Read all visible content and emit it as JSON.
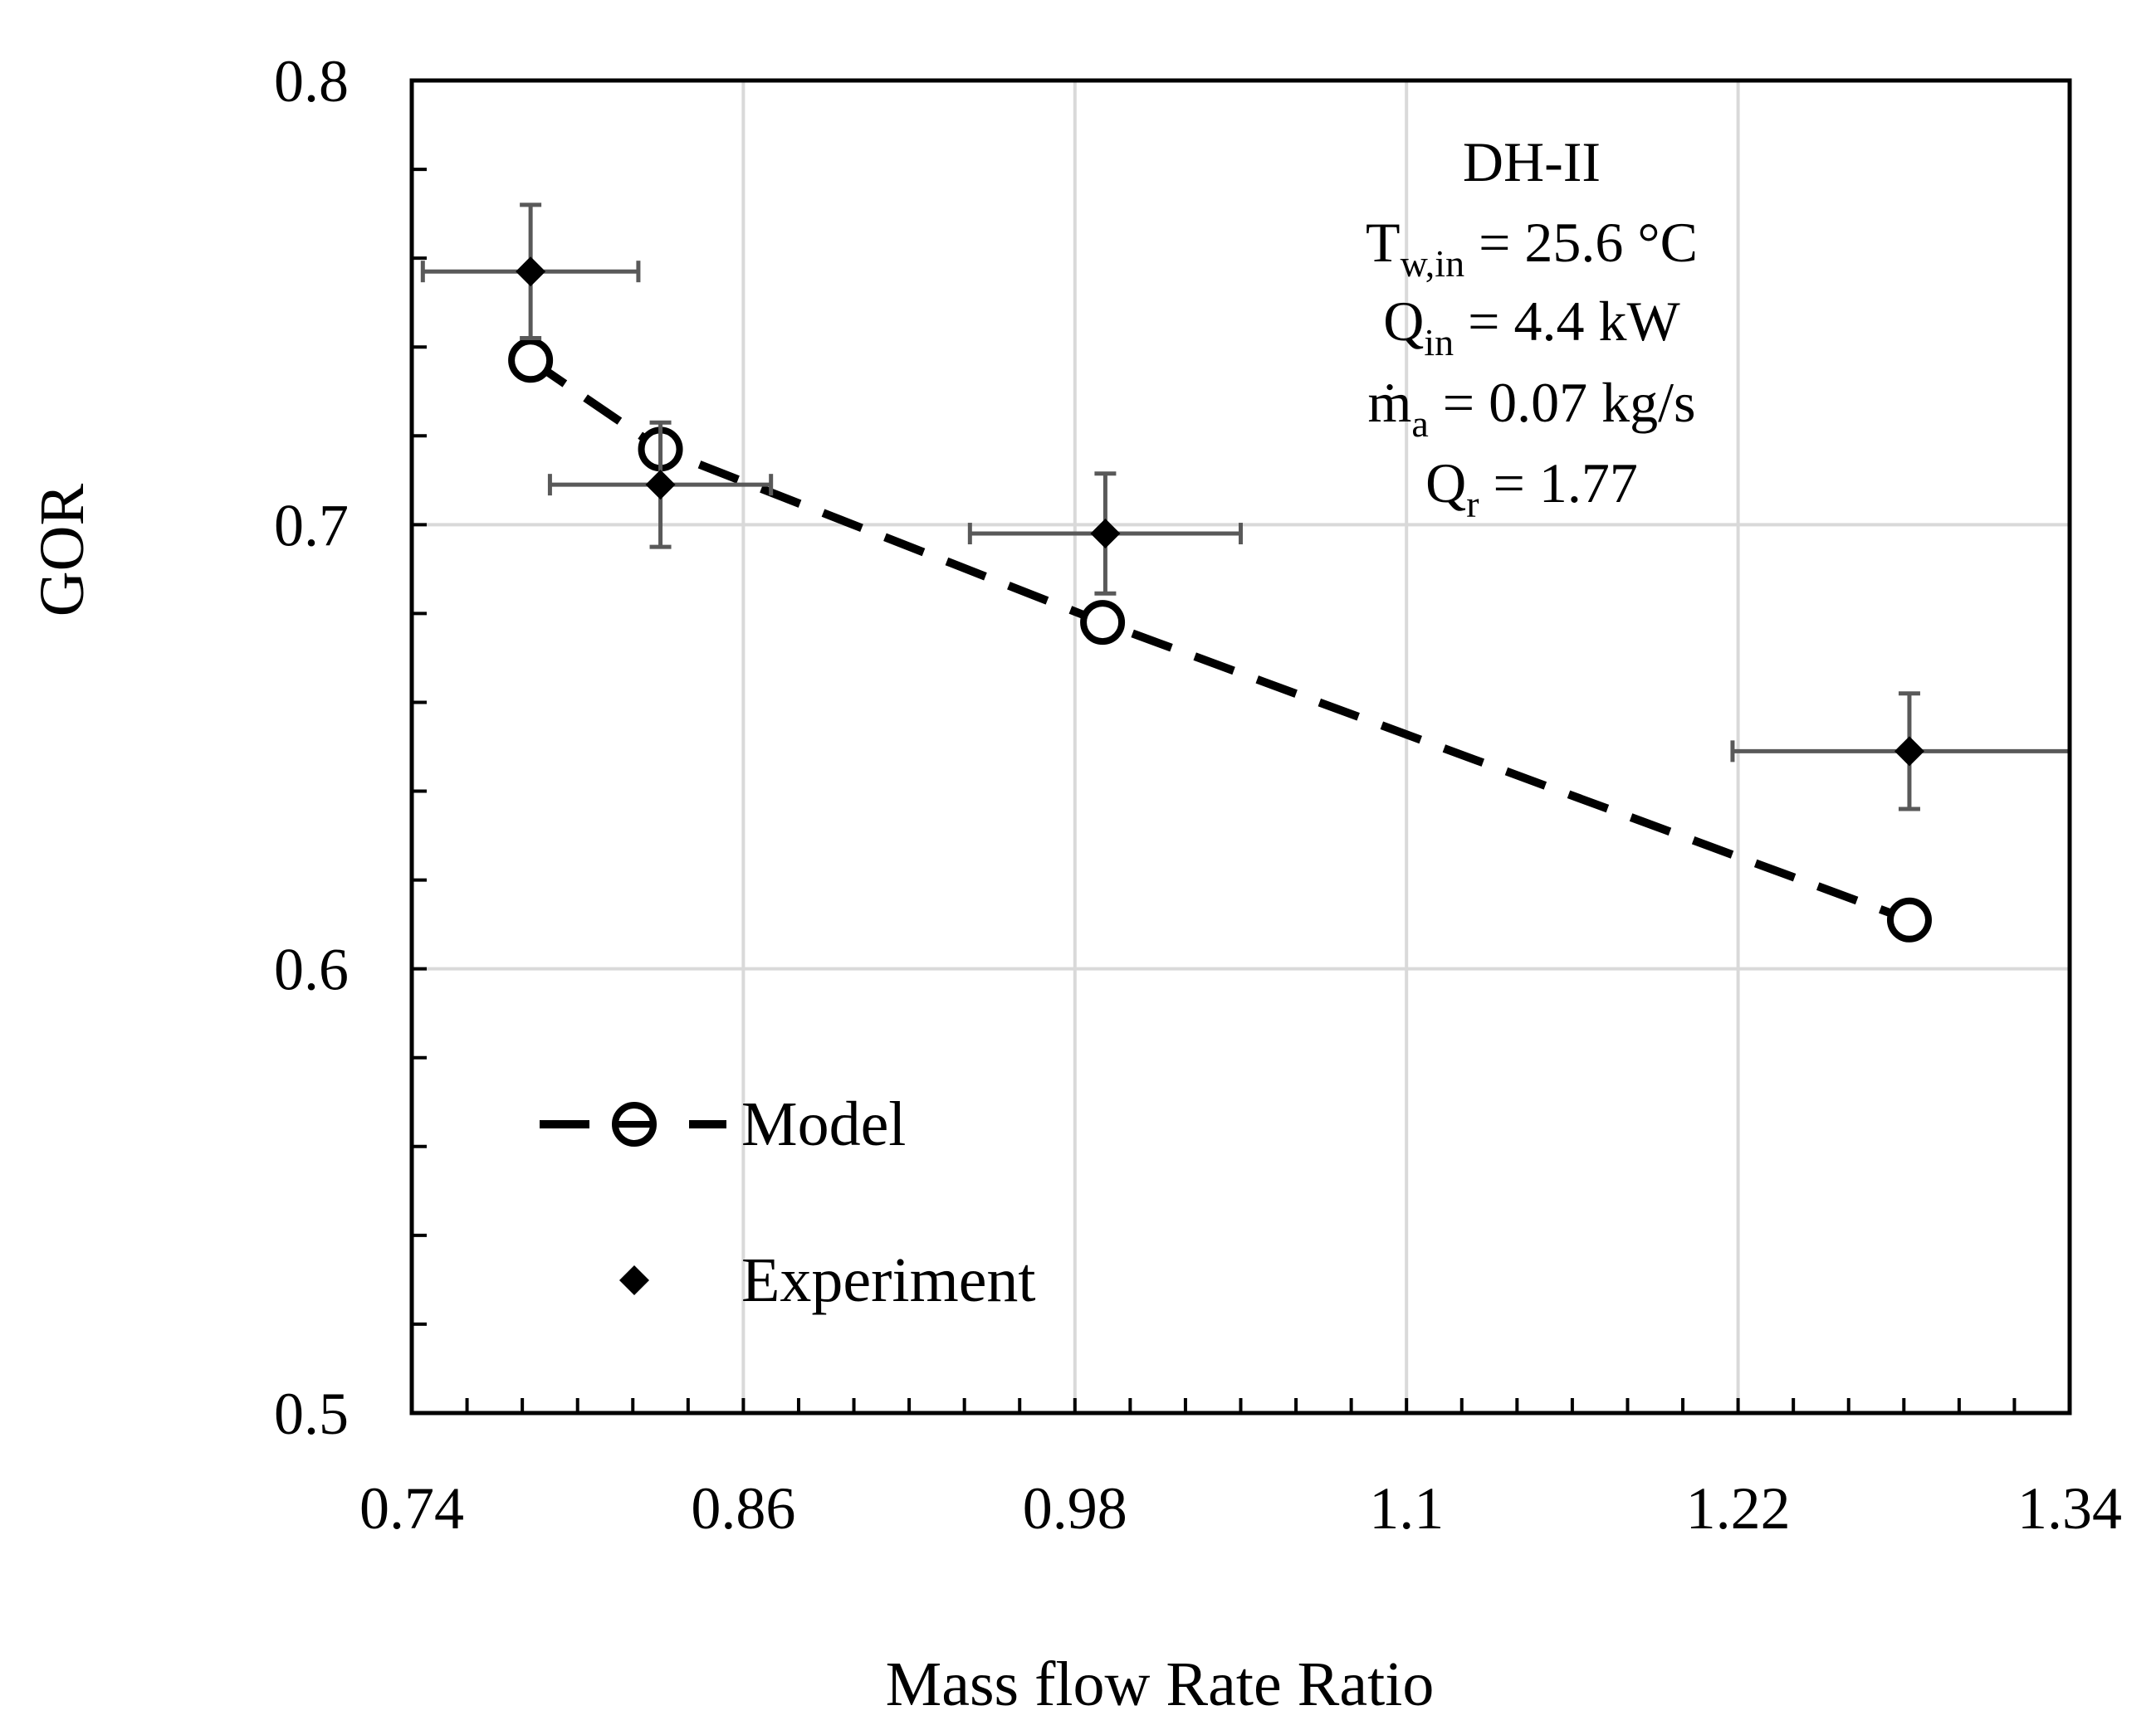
{
  "chart_data": {
    "type": "scatter",
    "xlabel": "Mass flow Rate Ratio",
    "ylabel": "GOR",
    "xlim": [
      0.74,
      1.34
    ],
    "ylim": [
      0.5,
      0.8
    ],
    "xticks": [
      0.74,
      0.86,
      0.98,
      1.1,
      1.22,
      1.34
    ],
    "xtick_labels": [
      "0.74",
      "0.86",
      "0.98",
      "1.1",
      "1.22",
      "1.34"
    ],
    "yticks": [
      0.5,
      0.6,
      0.7,
      0.8
    ],
    "ytick_labels": [
      "0.5",
      "0.6",
      "0.7",
      "0.8"
    ],
    "minor_step_x": 0.02,
    "minor_step_y": 0.02,
    "grid": true,
    "legend_position": "bottom-left",
    "series": [
      {
        "name": "Model",
        "style": "dashed-line-open-circle",
        "x": [
          0.783,
          0.83,
          0.99,
          1.282
        ],
        "y": [
          0.737,
          0.717,
          0.678,
          0.611
        ]
      },
      {
        "name": "Experiment",
        "style": "filled-diamond-errorbars",
        "x": [
          0.783,
          0.83,
          0.991,
          1.282
        ],
        "y": [
          0.757,
          0.709,
          0.698,
          0.649
        ],
        "xerr": [
          0.039,
          0.04,
          0.049,
          0.064
        ],
        "yerr": [
          0.015,
          0.014,
          0.0135,
          0.013
        ]
      }
    ],
    "annotations": {
      "name": "DH-II",
      "tw_main": "T",
      "tw_sub": "w,in",
      "tw_value": " = 25.6 °C",
      "qin_main": "Q",
      "qin_sub": "in",
      "qin_value": " = 4.4 kW",
      "ma_main": "ṁ",
      "ma_sub": "a",
      "ma_value": " = 0.07 kg/s",
      "qr_main": "Q",
      "qr_sub": "r",
      "qr_value": " = 1.77"
    }
  },
  "colors": {
    "grid": "#d9d9d9",
    "axis": "#000000",
    "errorbar": "#595959",
    "model": "#000000",
    "experiment": "#000000"
  }
}
